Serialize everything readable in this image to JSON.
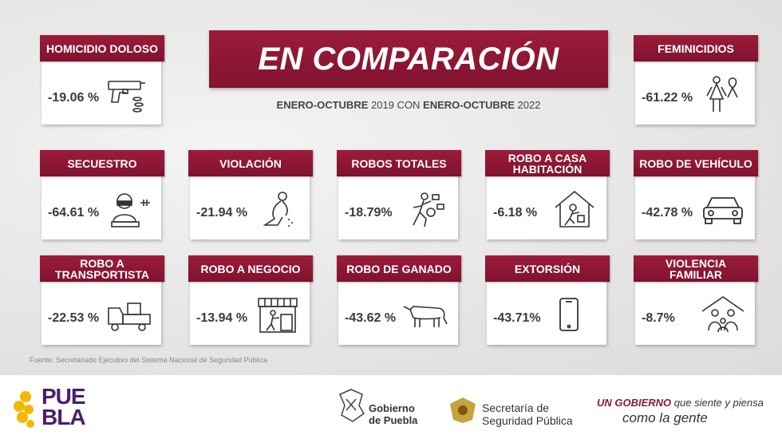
{
  "title": "EN COMPARACIÓN",
  "subtitle": {
    "bold1": "ENERO-OCTUBRE",
    "year1": " 2019 CON ",
    "bold2": "ENERO-OCTUBRE",
    "year2": " 2022"
  },
  "cards": [
    {
      "label": "HOMICIDIO DOLOSO",
      "value": "-19.06 %",
      "icon": "gun-icon"
    },
    {
      "label": "FEMINICIDIOS",
      "value": "-61.22 %",
      "icon": "woman-ribbon-icon"
    },
    {
      "label": "SECUESTRO",
      "value": "-64.61 %",
      "icon": "hostage-icon"
    },
    {
      "label": "VIOLACIÓN",
      "value": "-21.94 %",
      "icon": "kneeling-person-icon"
    },
    {
      "label": "ROBOS TOTALES",
      "value": "-18.79%",
      "icon": "running-thief-icon"
    },
    {
      "label": "ROBO A CASA HABITACIÓN",
      "value": "-6.18 %",
      "icon": "house-thief-icon"
    },
    {
      "label": "ROBO DE VEHÍCULO",
      "value": "-42.78 %",
      "icon": "car-icon"
    },
    {
      "label": "ROBO A TRANSPORTISTA",
      "value": "-22.53 %",
      "icon": "truck-icon"
    },
    {
      "label": "ROBO A NEGOCIO",
      "value": "-13.94 %",
      "icon": "store-icon"
    },
    {
      "label": "ROBO DE GANADO",
      "value": "-43.62 %",
      "icon": "cow-icon"
    },
    {
      "label": "EXTORSIÓN",
      "value": "-43.71%",
      "icon": "phone-icon"
    },
    {
      "label": "VIOLENCIA FAMILIAR",
      "value": "-8.7%",
      "icon": "family-house-icon"
    }
  ],
  "source": "Fuente: Secretariado Ejecutivo del  Sistema Nacional de Seguridad Pública",
  "footer": {
    "puebla_line1": "PUE",
    "puebla_line2": "BLA",
    "gob_line1": "Gobierno",
    "gob_line2": "de Puebla",
    "ssp_line1": "Secretaría de",
    "ssp_line2": "Seguridad Pública",
    "slogan_bold": "UN GOBIERNO",
    "slogan_light": " que siente y piensa",
    "slogan_line2": "como la gente"
  },
  "colors": {
    "primary": "#8b1c3b",
    "puebla_purple": "#4a1e6b",
    "puebla_yellow": "#f5b800"
  }
}
